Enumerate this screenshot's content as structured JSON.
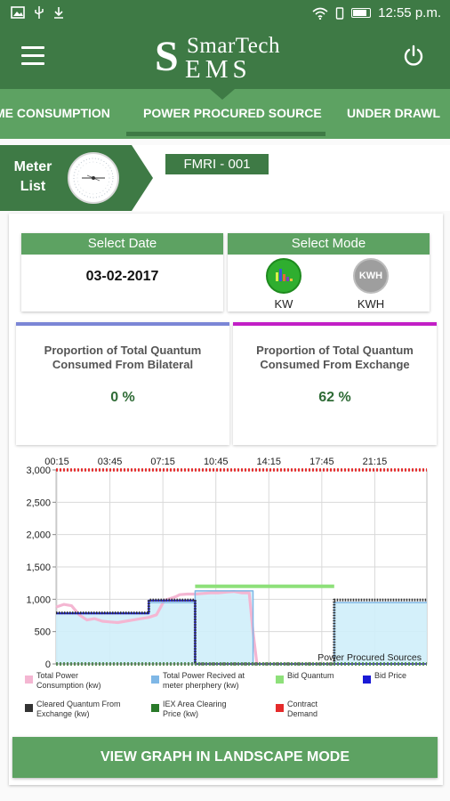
{
  "status_bar": {
    "time": "12:55 p.m."
  },
  "app_bar": {
    "logo_line1": "SmarTech",
    "logo_line2": "EMS",
    "logo_mark": "S"
  },
  "tabs": [
    {
      "label": "ME CONSUMPTION"
    },
    {
      "label": "POWER PROCURED SOURCE"
    },
    {
      "label": "UNDER DRAWL"
    }
  ],
  "meter": {
    "label_line1": "Meter",
    "label_line2": "List",
    "selected": "FMRI - 001"
  },
  "select_date": {
    "header": "Select Date",
    "value": "03-02-2017"
  },
  "select_mode": {
    "header": "Select Mode",
    "options": [
      {
        "label": "KW"
      },
      {
        "label": "KWH",
        "icon_text": "KWH"
      }
    ]
  },
  "proportions": [
    {
      "title": "Proportion of Total Quantum Consumed From Bilateral",
      "value": "0 %",
      "accent": "#7b86d6"
    },
    {
      "title": "Proportion of Total Quantum Consumed From Exchange",
      "value": "62 %",
      "accent": "#c21fc6"
    }
  ],
  "chart_data": {
    "type": "line",
    "title": "",
    "xlabel": "",
    "ylabel": "",
    "annotation": "Power Procured Sources",
    "x_ticks": [
      "00:15",
      "03:45",
      "07:15",
      "10:45",
      "14:15",
      "17:45",
      "21:15"
    ],
    "y_ticks": [
      "0",
      "500",
      "1,000",
      "1,500",
      "2,000",
      "2,500",
      "3,000"
    ],
    "ylim": [
      0,
      3000
    ],
    "xlim": [
      0,
      96
    ],
    "grid": true,
    "legend_position": "bottom",
    "series": [
      {
        "name": "Total Power Consumption (kw)",
        "color": "#f4b6d2",
        "x": [
          0,
          2,
          4,
          6,
          7,
          8,
          10,
          12,
          14,
          16,
          18,
          20,
          22,
          24,
          26,
          28,
          30,
          31,
          32,
          34,
          36,
          38,
          40,
          42,
          44,
          46,
          48,
          50,
          51,
          52
        ],
        "y": [
          880,
          920,
          900,
          760,
          720,
          680,
          700,
          660,
          650,
          640,
          660,
          680,
          700,
          720,
          760,
          980,
          1020,
          1040,
          1070,
          1080,
          1080,
          1090,
          1100,
          1100,
          1110,
          1120,
          1100,
          1100,
          500,
          0
        ]
      },
      {
        "name": "Total Power Recived at meter pherphery (kw)",
        "color": "#7fb7e6",
        "x": [
          0,
          24,
          24.01,
          36,
          36.01,
          51,
          51.01,
          72,
          72.01,
          96
        ],
        "y": [
          790,
          790,
          950,
          950,
          1130,
          1130,
          0,
          0,
          950,
          950
        ]
      },
      {
        "name": "Bid Quantum",
        "color": "#8ee07a",
        "x": [
          36,
          72
        ],
        "y": [
          1200,
          1200
        ]
      },
      {
        "name": "Bid Price",
        "color": "#1a1ad6",
        "x": [
          0,
          24,
          24.01,
          36,
          36.01,
          96
        ],
        "y": [
          780,
          780,
          980,
          980,
          0,
          0
        ]
      },
      {
        "name": "Cleared Quantum From Exchange (kw)",
        "color": "#333333",
        "x": [
          0,
          24,
          24.01,
          36,
          36.01,
          72,
          72.01,
          96
        ],
        "y": [
          790,
          790,
          990,
          990,
          0,
          0,
          990,
          990
        ]
      },
      {
        "name": "IEX Area Clearing Price (kw)",
        "color": "#2a7a2a",
        "x": [
          0,
          96
        ],
        "y": [
          0,
          0
        ]
      },
      {
        "name": "Contract Demand",
        "color": "#e52b2b",
        "x": [
          0,
          96
        ],
        "y": [
          3000,
          3000
        ]
      }
    ]
  },
  "landscape_button": "VIEW GRAPH IN LANDSCAPE MODE"
}
